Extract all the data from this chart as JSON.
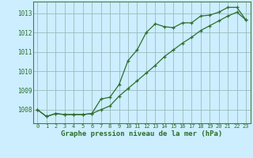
{
  "title": "Graphe pression niveau de la mer (hPa)",
  "background_color": "#cceeff",
  "grid_color": "#99bbbb",
  "line_color": "#2d6e2d",
  "line1_x": [
    0,
    1,
    2,
    3,
    4,
    5,
    6,
    7,
    8,
    9,
    10,
    11,
    12,
    13,
    14,
    15,
    16,
    17,
    18,
    19,
    20,
    21,
    22,
    23
  ],
  "line1_y": [
    1008.0,
    1007.65,
    1007.8,
    1007.75,
    1007.75,
    1007.75,
    1007.8,
    1008.55,
    1008.65,
    1009.3,
    1010.55,
    1011.1,
    1012.0,
    1012.45,
    1012.3,
    1012.25,
    1012.5,
    1012.5,
    1012.85,
    1012.9,
    1013.05,
    1013.3,
    1013.3,
    1012.65
  ],
  "line2_x": [
    0,
    1,
    2,
    3,
    4,
    5,
    6,
    7,
    8,
    9,
    10,
    11,
    12,
    13,
    14,
    15,
    16,
    17,
    18,
    19,
    20,
    21,
    22,
    23
  ],
  "line2_y": [
    1008.0,
    1007.65,
    1007.8,
    1007.75,
    1007.75,
    1007.75,
    1007.8,
    1008.0,
    1008.2,
    1008.7,
    1009.1,
    1009.5,
    1009.9,
    1010.3,
    1010.75,
    1011.1,
    1011.45,
    1011.75,
    1012.1,
    1012.35,
    1012.6,
    1012.85,
    1013.05,
    1012.65
  ],
  "xlim": [
    -0.5,
    23.5
  ],
  "ylim": [
    1007.3,
    1013.6
  ],
  "yticks": [
    1008,
    1009,
    1010,
    1011,
    1012,
    1013
  ],
  "xticks": [
    0,
    1,
    2,
    3,
    4,
    5,
    6,
    7,
    8,
    9,
    10,
    11,
    12,
    13,
    14,
    15,
    16,
    17,
    18,
    19,
    20,
    21,
    22,
    23
  ],
  "tick_fontsize": 5.0,
  "ytick_fontsize": 5.5,
  "title_fontsize": 6.5,
  "marker_size": 3.5,
  "linewidth": 0.9
}
